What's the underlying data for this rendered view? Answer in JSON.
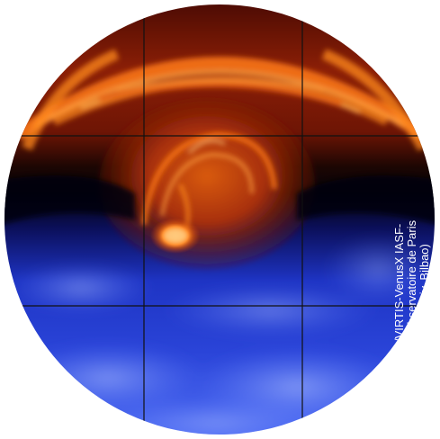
{
  "image": {
    "subject": "venus-south-polar-vortex-mosaic",
    "credit_lines": [
      "ESA/VIRTIS-VenusX IASF-",
      "INAF, Observatoire de Paris",
      "(R.Hueso, Univ. Bilbao)"
    ]
  },
  "colors": {
    "background": "#ffffff",
    "orange_bright": "#ff8a1c",
    "orange_deep": "#c23c0a",
    "dark_red": "#5a0c04",
    "night_band": "#05030a",
    "blue_deep": "#1a2cc8",
    "blue_light": "#5d7dff",
    "grid_line": "#111111"
  }
}
